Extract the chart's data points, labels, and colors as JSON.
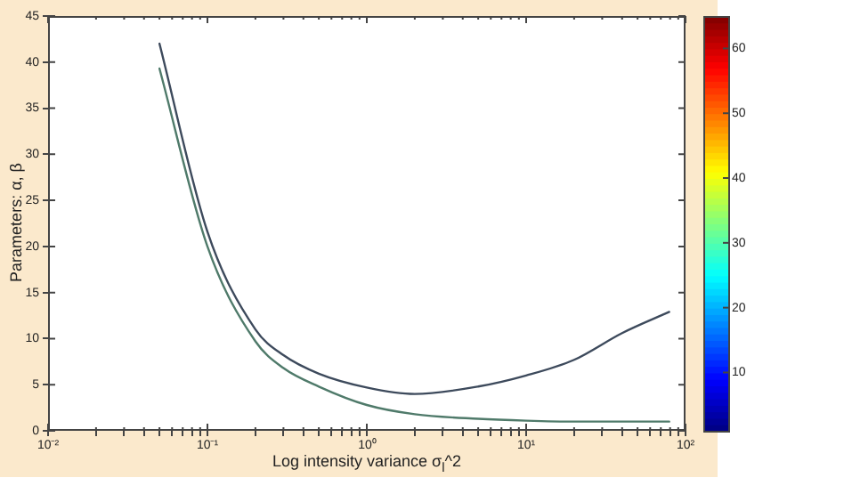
{
  "chart_data": {
    "type": "line",
    "xlabel": "Log intensity variance σ$_{l}$^2",
    "ylabel": "Parameters: α, β",
    "log": "x",
    "grid": false,
    "legend": false,
    "marker": "none",
    "line_style": "solid",
    "xlim": [
      0.01,
      100
    ],
    "xticks": [
      {
        "value": 0.01,
        "label": "10⁻²"
      },
      {
        "value": 0.02,
        "label": null
      },
      {
        "value": 0.03,
        "label": null
      },
      {
        "value": 0.04,
        "label": null
      },
      {
        "value": 0.05,
        "label": null
      },
      {
        "value": 0.06,
        "label": null
      },
      {
        "value": 0.07,
        "label": null
      },
      {
        "value": 0.08,
        "label": null
      },
      {
        "value": 0.09,
        "label": null
      },
      {
        "value": 0.1,
        "label": "10⁻¹"
      },
      {
        "value": 0.2,
        "label": null
      },
      {
        "value": 0.3,
        "label": null
      },
      {
        "value": 0.4,
        "label": null
      },
      {
        "value": 0.5,
        "label": null
      },
      {
        "value": 0.6,
        "label": null
      },
      {
        "value": 0.7,
        "label": null
      },
      {
        "value": 0.8,
        "label": null
      },
      {
        "value": 0.9,
        "label": null
      },
      {
        "value": 1,
        "label": "10⁰"
      },
      {
        "value": 2,
        "label": null
      },
      {
        "value": 3,
        "label": null
      },
      {
        "value": 4,
        "label": null
      },
      {
        "value": 5,
        "label": null
      },
      {
        "value": 6,
        "label": null
      },
      {
        "value": 7,
        "label": null
      },
      {
        "value": 8,
        "label": null
      },
      {
        "value": 9,
        "label": null
      },
      {
        "value": 10,
        "label": "10¹"
      },
      {
        "value": 20,
        "label": null
      },
      {
        "value": 30,
        "label": null
      },
      {
        "value": 40,
        "label": null
      },
      {
        "value": 50,
        "label": null
      },
      {
        "value": 60,
        "label": null
      },
      {
        "value": 70,
        "label": null
      },
      {
        "value": 80,
        "label": null
      },
      {
        "value": 90,
        "label": null
      },
      {
        "value": 100,
        "label": "10²"
      }
    ],
    "ylim": [
      0,
      45
    ],
    "yticks": [
      0,
      5,
      10,
      15,
      20,
      25,
      30,
      35,
      40,
      45
    ],
    "clim": [
      1,
      65
    ],
    "cticks": [
      10,
      20,
      30,
      40,
      50,
      60
    ],
    "x": [
      0.05,
      0.1,
      0.2,
      0.3,
      0.5,
      1,
      2,
      5,
      10,
      20,
      40,
      79
    ],
    "series": [
      {
        "color": "#3d4a5c",
        "values": [
          42,
          21.6,
          11,
          8.2,
          6.2,
          4.7,
          4.0,
          4.8,
          6.0,
          7.7,
          10.6,
          12.9
        ]
      },
      {
        "color": "#4f7a6a",
        "values": [
          39.3,
          20,
          9.7,
          6.8,
          4.8,
          2.8,
          1.8,
          1.3,
          1.1,
          1.0,
          1.0,
          1.0
        ]
      }
    ]
  }
}
